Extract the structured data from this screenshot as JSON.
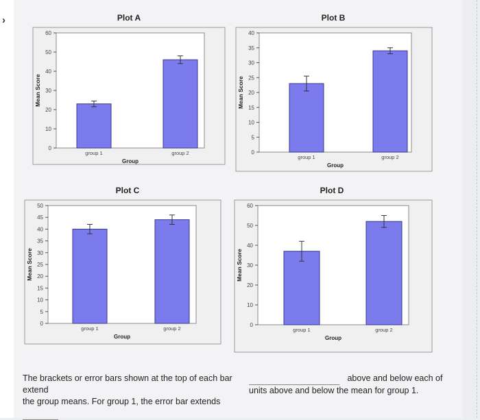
{
  "nav": {
    "arrow_glyph": "›"
  },
  "y_axis_label": "Mean Score",
  "x_axis_label": "Group",
  "charts": [
    {
      "id": "plot-a",
      "title": "Plot A",
      "categories": [
        "group 1",
        "group 2"
      ],
      "values": [
        23,
        46
      ],
      "errors": [
        1.5,
        2
      ],
      "ylim": [
        0,
        60
      ],
      "ticks": [
        0,
        10,
        20,
        30,
        40,
        50,
        60
      ]
    },
    {
      "id": "plot-b",
      "title": "Plot B",
      "categories": [
        "group 1",
        "group 2"
      ],
      "values": [
        23,
        34
      ],
      "errors": [
        2.5,
        1
      ],
      "ylim": [
        0,
        40
      ],
      "ticks": [
        0,
        5,
        10,
        15,
        20,
        25,
        30,
        35,
        40
      ]
    },
    {
      "id": "plot-c",
      "title": "Plot C",
      "categories": [
        "group 1",
        "group 2"
      ],
      "values": [
        40,
        44
      ],
      "errors": [
        2,
        2
      ],
      "ylim": [
        0,
        50
      ],
      "ticks": [
        0,
        5,
        10,
        15,
        20,
        25,
        30,
        35,
        40,
        45,
        50
      ]
    },
    {
      "id": "plot-d",
      "title": "Plot D",
      "categories": [
        "group 1",
        "group 2"
      ],
      "values": [
        37,
        52
      ],
      "errors": [
        5,
        3
      ],
      "ylim": [
        0,
        60
      ],
      "ticks": [
        0,
        10,
        20,
        30,
        40,
        50,
        60
      ]
    }
  ],
  "chart_data": [
    {
      "type": "bar",
      "title": "Plot A",
      "xlabel": "Group",
      "ylabel": "Mean Score",
      "categories": [
        "group 1",
        "group 2"
      ],
      "values": [
        23,
        46
      ],
      "ylim": [
        0,
        60
      ]
    },
    {
      "type": "bar",
      "title": "Plot B",
      "xlabel": "Group",
      "ylabel": "Mean Score",
      "categories": [
        "group 1",
        "group 2"
      ],
      "values": [
        23,
        34
      ],
      "ylim": [
        0,
        40
      ]
    },
    {
      "type": "bar",
      "title": "Plot C",
      "xlabel": "Group",
      "ylabel": "Mean Score",
      "categories": [
        "group 1",
        "group 2"
      ],
      "values": [
        40,
        44
      ],
      "ylim": [
        0,
        50
      ]
    },
    {
      "type": "bar",
      "title": "Plot D",
      "xlabel": "Group",
      "ylabel": "Mean Score",
      "categories": [
        "group 1",
        "group 2"
      ],
      "values": [
        37,
        52
      ],
      "ylim": [
        0,
        60
      ]
    }
  ],
  "question": {
    "line1_left": "The brackets or error bars shown at the top of each bar extend",
    "line1_right": "above and below each of",
    "line2_left": "the group means. For group 1, the error bar extends",
    "line2_right": "units above and below the mean for group 1."
  },
  "colors": {
    "bar_fill": "#7b7bee",
    "bar_stroke": "#3a3a8a",
    "plot_area": "#ffffff",
    "text": "#222222"
  }
}
